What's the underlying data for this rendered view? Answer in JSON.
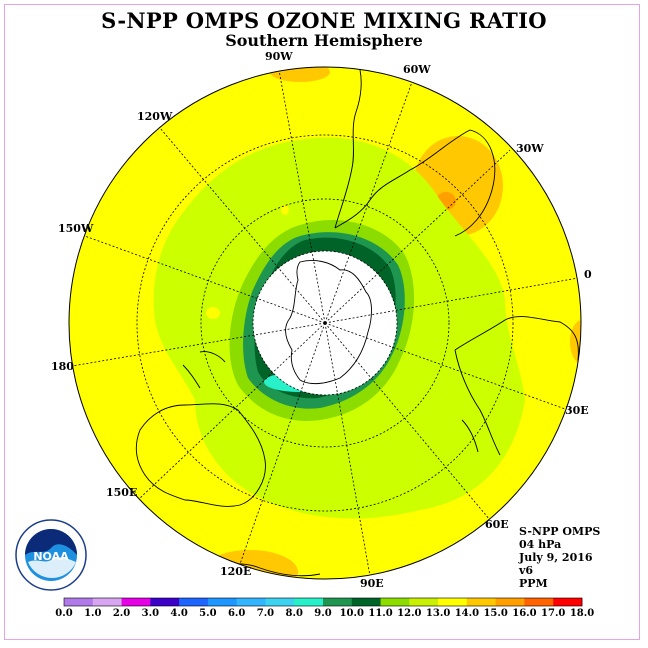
{
  "title": "S-NPP OMPS OZONE MIXING RATIO",
  "subtitle": "Southern Hemisphere",
  "longitude_labels": {
    "w90": "90W",
    "w60": "60W",
    "w30": "30W",
    "w120": "120W",
    "w150": "150W",
    "e0": "0",
    "d180": "180",
    "e30": "30E",
    "e150": "150E",
    "e60": "60E",
    "e120": "120E",
    "e90": "90E"
  },
  "info": {
    "instrument": "S-NPP OMPS",
    "level": "04 hPa",
    "date": "July 9, 2016",
    "version": "v6",
    "units": "PPM"
  },
  "logo": {
    "text": "NOAA",
    "icon": "noaa-logo"
  },
  "colorbar": {
    "labels": [
      "0.0",
      "1.0",
      "2.0",
      "3.0",
      "4.0",
      "5.0",
      "6.0",
      "7.0",
      "8.0",
      "9.0",
      "10.0",
      "11.0",
      "12.0",
      "13.0",
      "14.0",
      "15.0",
      "16.0",
      "17.0",
      "18.0"
    ],
    "colors": [
      "#b07be8",
      "#d8a6f0",
      "#e600e6",
      "#3c00c8",
      "#1e64ff",
      "#1e96ff",
      "#32b4ff",
      "#3cd2f0",
      "#28f0c8",
      "#1e9650",
      "#006428",
      "#8cdc00",
      "#c8f000",
      "#ffff00",
      "#ffc800",
      "#ffa000",
      "#ff6400",
      "#ff0000",
      "#a05030"
    ]
  }
}
